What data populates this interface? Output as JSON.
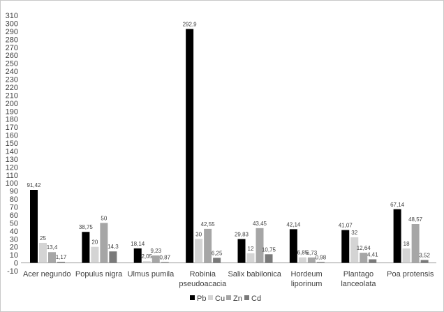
{
  "chart_data": {
    "type": "bar",
    "categories": [
      [
        "Acer negundo"
      ],
      [
        "Populus nigra"
      ],
      [
        "Ulmus pumila"
      ],
      [
        "Robinia",
        "pseudoacacia"
      ],
      [
        "Salix babilonica"
      ],
      [
        "Hordeum",
        "liporinum"
      ],
      [
        "Plantago",
        "lanceolata"
      ],
      [
        "Poa protensis"
      ]
    ],
    "series": [
      {
        "name": "Pb",
        "color": "#000000",
        "values": [
          91.42,
          38.75,
          18.14,
          292.9,
          29.83,
          42.14,
          41.07,
          67.14
        ],
        "labels": [
          "91,42",
          "38,75",
          "18,14",
          "292,9",
          "29,83",
          "42,14",
          "41,07",
          "67,14"
        ]
      },
      {
        "name": "Cu",
        "color": "#d4d4d4",
        "values": [
          25,
          20,
          2.05,
          30,
          12,
          6.85,
          32,
          18
        ],
        "labels": [
          "25",
          "20",
          "2,05",
          "30",
          "12",
          "6,85",
          "32",
          "18"
        ]
      },
      {
        "name": "Zn",
        "color": "#a6a6a6",
        "values": [
          13.4,
          50,
          9.23,
          42.55,
          43.45,
          6.73,
          12.64,
          48.57
        ],
        "labels": [
          "13,4",
          "50",
          "9,23",
          "42,55",
          "43,45",
          "6,73",
          "12,64",
          "48,57"
        ]
      },
      {
        "name": "Cd",
        "color": "#7a7a7a",
        "values": [
          1.17,
          14.3,
          0.87,
          6.25,
          10.75,
          0.98,
          4.41,
          3.52
        ],
        "labels": [
          "1,17",
          "14,3",
          "0,87",
          "6,25",
          "10,75",
          "0,98",
          "4,41",
          "3,52"
        ]
      }
    ],
    "ylim": [
      -10,
      310
    ],
    "ytick_step": 10,
    "legend_position": "bottom",
    "grid": false,
    "title": "",
    "xlabel": "",
    "ylabel": ""
  }
}
